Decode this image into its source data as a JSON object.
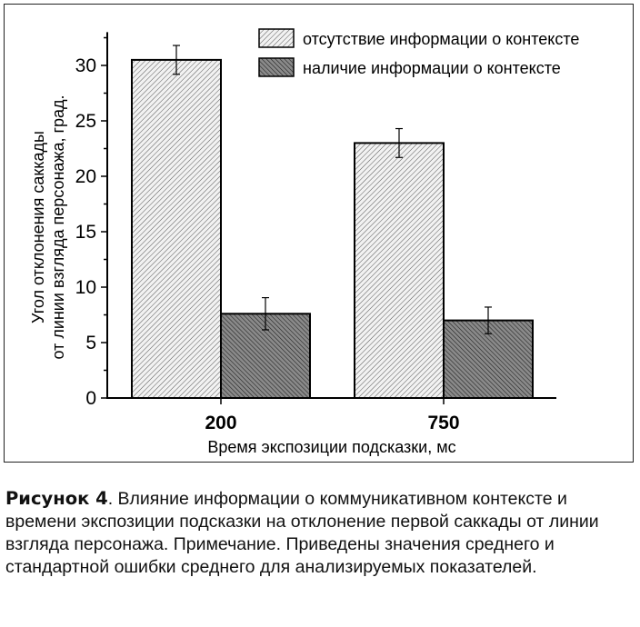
{
  "chart_data": {
    "type": "bar",
    "categories": [
      "200",
      "750"
    ],
    "series": [
      {
        "name": "отсутствие информации о контексте",
        "values": [
          30.5,
          23.0
        ],
        "errors": [
          1.3,
          1.3
        ],
        "pattern": "light-hatch"
      },
      {
        "name": "наличие информации о контексте",
        "values": [
          7.6,
          7.0
        ],
        "errors": [
          1.45,
          1.2
        ],
        "pattern": "dark-hatch"
      }
    ],
    "xlabel": "Время экспозиции подсказки, мс",
    "ylabel_lines": [
      "Угол отклонения саккады",
      "от линии взгляда персонажа, град."
    ],
    "yticks": [
      0,
      5,
      10,
      15,
      20,
      25,
      30
    ],
    "ylim": [
      0,
      33
    ],
    "legend": "top-right",
    "grid": false
  },
  "caption": {
    "label": "Рисунок 4",
    "text": ". Влияние информации о коммуникативном контексте и времени экспозиции подсказки на отклонение первой саккады от линии взгляда персонажа. Примечание. Приведены значения среднего и стандартной ошибки среднего для анализируемых показателей."
  }
}
